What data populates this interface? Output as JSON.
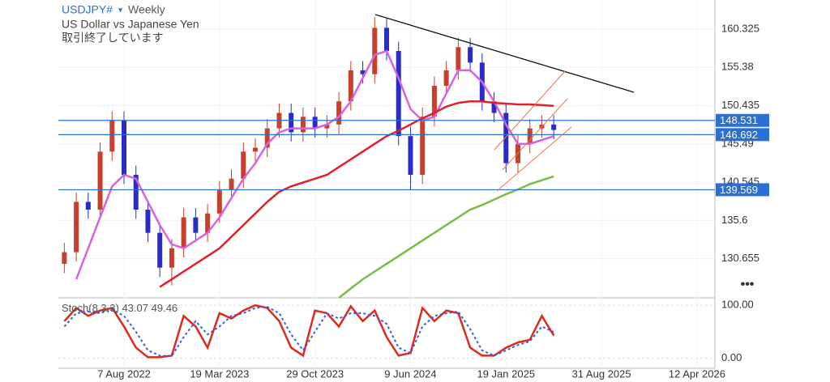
{
  "header": {
    "symbol": "USDJPY#",
    "timeframe": "Weekly",
    "description": "US Dollar vs Japanese Yen",
    "status": "取引終了しています"
  },
  "chart_data": [
    {
      "type": "candlestick",
      "up_color": "#c8402c",
      "down_color": "#2b2bc8",
      "categories": [
        null,
        null,
        null,
        null,
        null,
        "7 Aug 2022",
        null,
        null,
        null,
        null,
        null,
        null,
        null,
        "19 Mar 2023",
        null,
        null,
        null,
        null,
        null,
        null,
        null,
        "29 Oct 2023",
        null,
        null,
        null,
        null,
        null,
        null,
        null,
        "9 Jun 2024",
        null,
        null,
        null,
        null,
        null,
        null,
        null,
        "19 Jan 2025",
        null,
        null,
        null,
        null,
        null,
        null,
        null,
        "31 Aug 2025",
        null,
        null,
        null,
        null,
        null,
        null,
        null,
        "12 Apr 2026",
        null
      ],
      "open": [
        130,
        131.5,
        138,
        137,
        144.5,
        148.5,
        141.5,
        137,
        134,
        129.5,
        132,
        136,
        134,
        136.5,
        139.5,
        141,
        144.5,
        145,
        147.5,
        149.5,
        147,
        149,
        147.5,
        148,
        151,
        155,
        154.5,
        160.5,
        157.5,
        146.5,
        141.5,
        149,
        153,
        155,
        158,
        156,
        151,
        149.5,
        143,
        145.5,
        147.5,
        148,
        null,
        null,
        null,
        null,
        null,
        null,
        null,
        null,
        null,
        null,
        null,
        null,
        null
      ],
      "high": [
        132.7,
        139.2,
        139.2,
        145.7,
        149.7,
        149.7,
        142.7,
        138.2,
        135.2,
        133.2,
        137.2,
        137.2,
        137.7,
        140.7,
        142.2,
        145.7,
        146.2,
        148.7,
        150.7,
        150.7,
        150.2,
        150.2,
        149.2,
        152.2,
        156.2,
        156.2,
        161.9,
        161.7,
        158.7,
        147.7,
        150.2,
        154.2,
        156.2,
        159.2,
        159.2,
        157.2,
        152.2,
        150.7,
        146.7,
        148.7,
        149.2,
        149.2,
        null,
        null,
        null,
        null,
        null,
        null,
        null,
        null,
        null,
        null,
        null,
        null,
        null
      ],
      "low": [
        128.8,
        130.3,
        135.8,
        135.8,
        143.3,
        140.3,
        135.8,
        132.8,
        128.3,
        127.2,
        130.8,
        132.8,
        132.8,
        135.3,
        138.3,
        139.8,
        143.3,
        143.8,
        146.3,
        145.8,
        145.8,
        146.3,
        146.3,
        146.8,
        149.8,
        153.3,
        153.3,
        156.3,
        145.3,
        139.6,
        140.3,
        147.8,
        151.8,
        153.8,
        154.8,
        149.8,
        148.3,
        141.8,
        141.8,
        144.3,
        146.3,
        146.1,
        null,
        null,
        null,
        null,
        null,
        null,
        null,
        null,
        null,
        null,
        null,
        null,
        null
      ],
      "close": [
        131.5,
        138,
        137,
        144.5,
        148.5,
        141.5,
        137,
        134,
        129.5,
        132,
        136,
        134,
        136.5,
        139.5,
        141,
        144.5,
        145,
        147.5,
        149.5,
        147,
        149,
        147.5,
        148,
        151,
        155,
        154.5,
        160.5,
        157.5,
        146.5,
        141.5,
        149,
        153,
        155,
        158,
        156,
        151,
        149.5,
        143,
        145.5,
        147.5,
        148,
        147.3,
        null,
        null,
        null,
        null,
        null,
        null,
        null,
        null,
        null,
        null,
        null,
        null,
        null
      ],
      "series": [
        {
          "color": "#d563e0",
          "values": [
            null,
            128,
            132,
            136,
            140,
            141.5,
            141,
            138,
            135,
            132.5,
            132,
            133,
            134,
            136,
            138.5,
            141,
            143,
            145.5,
            147,
            147.5,
            147.5,
            147.5,
            148,
            149,
            151,
            154,
            157,
            157.5,
            154,
            150,
            148.5,
            149,
            152,
            155,
            155,
            153.5,
            151,
            148,
            145.5,
            145.5,
            146,
            146.5,
            null,
            null,
            null,
            null,
            null,
            null,
            null,
            null,
            null,
            null,
            null,
            null,
            null
          ]
        },
        {
          "color": "#e0202a",
          "values": [
            null,
            null,
            null,
            null,
            null,
            null,
            null,
            null,
            127,
            128,
            129,
            130,
            131,
            132,
            133.5,
            135,
            136.5,
            138,
            139.3,
            140,
            140.5,
            141,
            141.5,
            142.5,
            143.5,
            144.5,
            145.5,
            146.5,
            147.2,
            148,
            148.8,
            149.5,
            150.3,
            150.8,
            151,
            151,
            150.8,
            150.7,
            150.6,
            150.6,
            150.5,
            150.4,
            null,
            null,
            null,
            null,
            null,
            null,
            null,
            null,
            null,
            null,
            null,
            null,
            null
          ]
        },
        {
          "color": "#7cbb43",
          "values": [
            null,
            null,
            null,
            null,
            null,
            null,
            null,
            null,
            null,
            null,
            null,
            null,
            null,
            null,
            null,
            null,
            null,
            null,
            null,
            null,
            null,
            null,
            null,
            125.6,
            126.8,
            128,
            129,
            130,
            131,
            132,
            133,
            134,
            135,
            136,
            137,
            137.6,
            138.3,
            139,
            139.6,
            140.3,
            140.8,
            141.3,
            null,
            null,
            null,
            null,
            null,
            null,
            null,
            null,
            null,
            null,
            null,
            null,
            null
          ]
        }
      ],
      "levels": [
        {
          "value": 148.531,
          "color": "#2a6fd6"
        },
        {
          "value": 146.692,
          "color": "#2a6fd6"
        },
        {
          "value": 139.569,
          "color": "#2a6fd6"
        }
      ],
      "ylim": [
        125.6,
        164.09
      ],
      "yticks": [
        160.325,
        155.38,
        150.435,
        145.49,
        140.545,
        135.6,
        130.655
      ]
    },
    {
      "type": "line",
      "indicator": "Stoch(8,3,3)",
      "series": [
        {
          "color": "#dd2a1a",
          "values": [
            70,
            95,
            80,
            90,
            95,
            60,
            20,
            2,
            2,
            5,
            80,
            60,
            20,
            85,
            75,
            90,
            100,
            95,
            70,
            20,
            5,
            90,
            85,
            60,
            98,
            70,
            90,
            40,
            5,
            10,
            95,
            70,
            90,
            85,
            20,
            5,
            5,
            20,
            30,
            35,
            80,
            43.07
          ]
        },
        {
          "color": "#3b5bdb",
          "dashed": true,
          "values": [
            60,
            85,
            88,
            85,
            92,
            80,
            50,
            15,
            5,
            4,
            40,
            70,
            45,
            60,
            80,
            85,
            95,
            97,
            85,
            45,
            15,
            50,
            85,
            75,
            85,
            85,
            80,
            65,
            20,
            10,
            60,
            80,
            85,
            88,
            55,
            15,
            5,
            15,
            25,
            32,
            60,
            49.46
          ]
        }
      ],
      "ylim": [
        -18.75,
        114
      ],
      "yticks": [
        {
          "value": 100,
          "label": "100.00"
        },
        {
          "value": 0,
          "label": "0.00"
        }
      ]
    }
  ]
}
